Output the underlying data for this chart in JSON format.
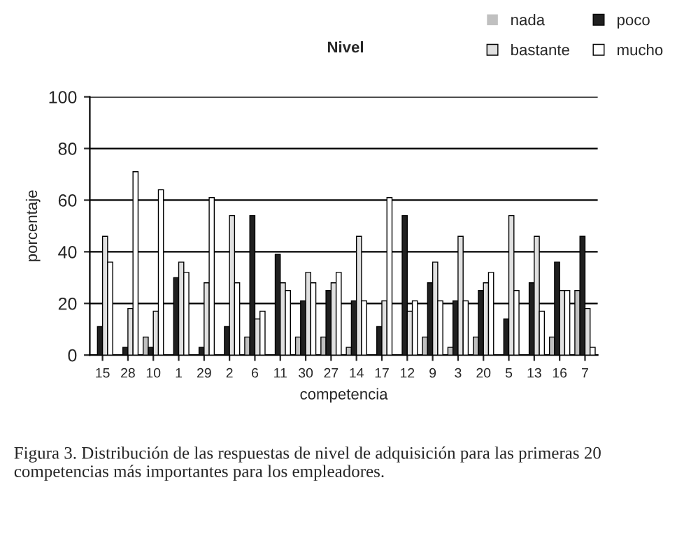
{
  "chart_data": {
    "type": "bar",
    "legend_title": "Nivel",
    "xlabel": "competencia",
    "ylabel": "porcentaje",
    "categories": [
      "15",
      "28",
      "10",
      "1",
      "29",
      "2",
      "6",
      "11",
      "30",
      "27",
      "14",
      "17",
      "12",
      "9",
      "3",
      "20",
      "5",
      "13",
      "16",
      "7"
    ],
    "series": [
      {
        "name": "nada",
        "color": "#c0c0c0",
        "values": [
          0,
          0,
          7,
          0,
          0,
          0,
          7,
          0,
          7,
          7,
          3,
          0,
          0,
          7,
          3,
          7,
          0,
          0,
          7,
          25
        ]
      },
      {
        "name": "poco",
        "color": "#202020",
        "values": [
          11,
          3,
          3,
          30,
          3,
          11,
          54,
          39,
          21,
          25,
          21,
          11,
          54,
          28,
          21,
          25,
          14,
          28,
          36,
          46
        ]
      },
      {
        "name": "bastante",
        "color": "#e0e0e0",
        "values": [
          46,
          18,
          17,
          36,
          28,
          54,
          14,
          28,
          32,
          28,
          46,
          21,
          17,
          36,
          46,
          28,
          54,
          46,
          25,
          18
        ]
      },
      {
        "name": "mucho",
        "color": "#ffffff",
        "values": [
          36,
          71,
          64,
          32,
          61,
          28,
          17,
          25,
          28,
          32,
          21,
          61,
          21,
          21,
          21,
          32,
          25,
          17,
          25,
          3
        ]
      }
    ],
    "ylim": [
      0,
      100
    ],
    "yticks": [
      0,
      20,
      40,
      60,
      80,
      100
    ],
    "grid": "y",
    "legend": "top right",
    "annotations": [
      "Figura 3. Distribución de las respuestas de nivel de adquisición para las primeras 20 competencias más importantes para los empleadores."
    ]
  }
}
